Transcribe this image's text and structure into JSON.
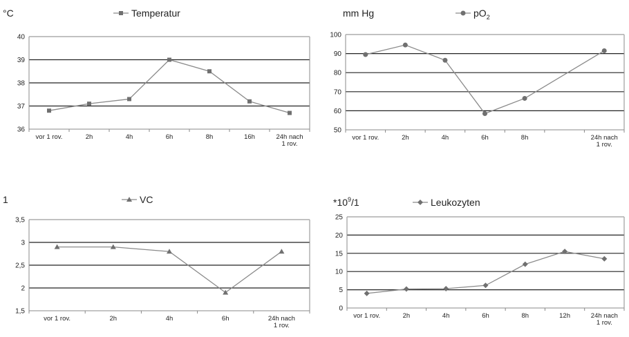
{
  "chart_data": [
    {
      "type": "line",
      "title": "",
      "unit_label": "°C",
      "legend": "Temperatur",
      "marker": "square",
      "categories": [
        "vor 1 rov.",
        "2h",
        "4h",
        "6h",
        "8h",
        "16h",
        "24h nach\n1 rov."
      ],
      "values": [
        36.8,
        37.1,
        37.3,
        39.0,
        38.5,
        37.2,
        36.7
      ],
      "ylim": [
        36,
        40
      ],
      "yticks": [
        "36",
        "37",
        "38",
        "39",
        "40"
      ],
      "grid": true
    },
    {
      "type": "line",
      "title": "",
      "unit_label": "mm Hg",
      "legend": "pO",
      "legend_sub": "2",
      "marker": "circle",
      "categories": [
        "vor 1 rov.",
        "2h",
        "4h",
        "6h",
        "8h",
        "",
        "24h nach\n1 rov."
      ],
      "values": [
        89.5,
        94.5,
        86.5,
        58.5,
        66.5,
        null,
        91.5
      ],
      "ylim": [
        50,
        100
      ],
      "yticks": [
        "50",
        "60",
        "70",
        "80",
        "90",
        "100"
      ],
      "grid": true
    },
    {
      "type": "line",
      "title": "",
      "unit_label": "1",
      "legend": "VC",
      "marker": "triangle",
      "categories": [
        "vor 1 rov.",
        "2h",
        "4h",
        "6h",
        "24h nach\n1 rov."
      ],
      "values": [
        2.9,
        2.9,
        2.8,
        1.9,
        2.8
      ],
      "ylim": [
        1.5,
        3.5
      ],
      "yticks": [
        "1,5",
        "2",
        "2,5",
        "3",
        "3,5"
      ],
      "grid": true
    },
    {
      "type": "line",
      "title": "",
      "unit_label": "*10",
      "unit_sup": "9",
      "unit_after": "/1",
      "legend": "Leukozyten",
      "marker": "diamond",
      "categories": [
        "vor 1 rov.",
        "2h",
        "4h",
        "6h",
        "8h",
        "12h",
        "24h nach\n1 rov."
      ],
      "values": [
        4,
        5.2,
        5.3,
        6.2,
        12,
        15.5,
        13.5
      ],
      "ylim": [
        0,
        25
      ],
      "yticks": [
        "0",
        "5",
        "10",
        "15",
        "20",
        "25"
      ],
      "grid": true
    }
  ]
}
